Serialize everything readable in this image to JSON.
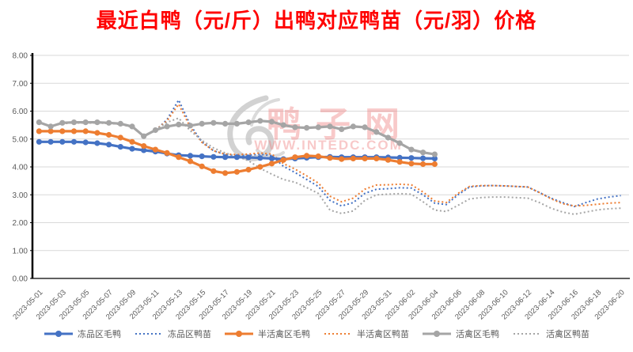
{
  "chart_data": {
    "type": "line",
    "title": "最近白鸭（元/斤）出鸭对应鸭苗（元/羽）价格",
    "title_color": "#FF0000",
    "xlabel": "",
    "ylabel": "",
    "ylim": [
      0,
      8
    ],
    "ytick_step": 1,
    "ytick_labels": [
      "0.00",
      "1.00",
      "2.00",
      "3.00",
      "4.00",
      "5.00",
      "6.00",
      "7.00",
      "8.00"
    ],
    "grid": true,
    "legend_position": "bottom",
    "x_label_every": 2,
    "dates": [
      "2023-05-01",
      "2023-05-02",
      "2023-05-03",
      "2023-05-04",
      "2023-05-05",
      "2023-05-06",
      "2023-05-07",
      "2023-05-08",
      "2023-05-09",
      "2023-05-10",
      "2023-05-11",
      "2023-05-12",
      "2023-05-13",
      "2023-05-14",
      "2023-05-15",
      "2023-05-16",
      "2023-05-17",
      "2023-05-18",
      "2023-05-19",
      "2023-05-20",
      "2023-05-21",
      "2023-05-22",
      "2023-05-23",
      "2023-05-24",
      "2023-05-25",
      "2023-05-26",
      "2023-05-27",
      "2023-05-28",
      "2023-05-29",
      "2023-05-30",
      "2023-05-31",
      "2023-06-01",
      "2023-06-02",
      "2023-06-03",
      "2023-06-04",
      "2023-06-05",
      "2023-06-06",
      "2023-06-07",
      "2023-06-08",
      "2023-06-09",
      "2023-06-10",
      "2023-06-11",
      "2023-06-12",
      "2023-06-13",
      "2023-06-14",
      "2023-06-15",
      "2023-06-16",
      "2023-06-17",
      "2023-06-18",
      "2023-06-19",
      "2023-06-20"
    ],
    "series": [
      {
        "name": "冻品区毛鸭",
        "key": "frozen-area-duck",
        "color": "#4472C4",
        "style": "solid",
        "marker": true,
        "values": [
          4.9,
          4.9,
          4.9,
          4.9,
          4.88,
          4.85,
          4.8,
          4.72,
          4.65,
          4.6,
          4.55,
          4.48,
          4.42,
          4.4,
          4.38,
          4.36,
          4.35,
          4.35,
          4.34,
          4.32,
          4.3,
          4.28,
          4.3,
          4.33,
          4.35,
          4.36,
          4.35,
          4.35,
          4.35,
          4.35,
          4.34,
          4.33,
          4.32,
          4.31,
          4.3,
          null,
          null,
          null,
          null,
          null,
          null,
          null,
          null,
          null,
          null,
          null,
          null,
          null,
          null,
          null,
          null
        ]
      },
      {
        "name": "冻品区鸭苗",
        "key": "frozen-area-duckling",
        "color": "#4472C4",
        "style": "dotted",
        "marker": false,
        "values": [
          5.58,
          5.45,
          5.56,
          5.58,
          5.58,
          5.58,
          5.56,
          5.53,
          5.43,
          5.1,
          5.3,
          5.7,
          6.4,
          5.5,
          4.9,
          4.58,
          4.44,
          4.4,
          4.42,
          4.45,
          4.4,
          4.02,
          3.8,
          3.55,
          3.3,
          2.8,
          2.6,
          2.72,
          3.05,
          3.2,
          3.22,
          3.25,
          3.24,
          3.0,
          2.7,
          2.65,
          3.0,
          3.28,
          3.32,
          3.33,
          3.32,
          3.3,
          3.28,
          3.08,
          2.88,
          2.72,
          2.58,
          2.72,
          2.85,
          2.92,
          2.97
        ]
      },
      {
        "name": "半活禽区毛鸭",
        "key": "semi-live-area-duck",
        "color": "#ED7D31",
        "style": "solid",
        "marker": true,
        "values": [
          5.28,
          5.28,
          5.28,
          5.28,
          5.28,
          5.22,
          5.15,
          5.05,
          4.9,
          4.75,
          4.62,
          4.5,
          4.35,
          4.2,
          4.02,
          3.85,
          3.78,
          3.82,
          3.9,
          4.0,
          4.12,
          4.25,
          4.35,
          4.4,
          4.38,
          4.32,
          4.28,
          4.3,
          4.3,
          4.3,
          4.25,
          4.18,
          4.12,
          4.1,
          4.1,
          null,
          null,
          null,
          null,
          null,
          null,
          null,
          null,
          null,
          null,
          null,
          null,
          null,
          null,
          null,
          null
        ]
      },
      {
        "name": "半活禽区鸭苗",
        "key": "semi-live-area-duckling",
        "color": "#ED7D31",
        "style": "dotted",
        "marker": false,
        "values": [
          5.58,
          5.45,
          5.56,
          5.58,
          5.58,
          5.58,
          5.56,
          5.53,
          5.43,
          5.1,
          5.32,
          5.65,
          6.25,
          5.42,
          4.88,
          4.58,
          4.46,
          4.44,
          4.46,
          4.5,
          4.46,
          4.12,
          3.92,
          3.68,
          3.42,
          2.95,
          2.75,
          2.88,
          3.2,
          3.35,
          3.36,
          3.38,
          3.36,
          3.1,
          2.78,
          2.72,
          3.05,
          3.3,
          3.33,
          3.33,
          3.32,
          3.3,
          3.28,
          3.08,
          2.86,
          2.68,
          2.6,
          2.62,
          2.66,
          2.7,
          2.72
        ]
      },
      {
        "name": "活禽区毛鸭",
        "key": "live-area-duck",
        "color": "#A5A5A5",
        "style": "solid",
        "marker": true,
        "values": [
          5.6,
          5.45,
          5.58,
          5.6,
          5.6,
          5.6,
          5.58,
          5.55,
          5.45,
          5.1,
          5.32,
          5.45,
          5.52,
          5.48,
          5.55,
          5.58,
          5.55,
          5.55,
          5.6,
          5.65,
          5.62,
          5.5,
          5.42,
          5.4,
          5.42,
          5.45,
          5.35,
          5.45,
          5.42,
          5.25,
          5.05,
          4.85,
          4.62,
          4.52,
          4.45,
          null,
          null,
          null,
          null,
          null,
          null,
          null,
          null,
          null,
          null,
          null,
          null,
          null,
          null,
          null,
          null
        ]
      },
      {
        "name": "活禽区鸭苗",
        "key": "live-area-duckling",
        "color": "#A5A5A5",
        "style": "dotted",
        "marker": false,
        "values": [
          5.58,
          5.45,
          5.56,
          5.58,
          5.58,
          5.58,
          5.56,
          5.53,
          5.43,
          5.1,
          5.32,
          5.6,
          5.75,
          5.3,
          4.95,
          4.68,
          4.5,
          4.38,
          4.22,
          3.95,
          3.74,
          3.55,
          3.45,
          3.26,
          3.05,
          2.45,
          2.33,
          2.42,
          2.8,
          3.0,
          3.02,
          3.04,
          3.02,
          2.75,
          2.45,
          2.4,
          2.62,
          2.85,
          2.9,
          2.92,
          2.92,
          2.9,
          2.88,
          2.72,
          2.52,
          2.38,
          2.3,
          2.38,
          2.46,
          2.5,
          2.52
        ]
      }
    ],
    "watermark": {
      "logo": "duck-swirl-logo",
      "text": "鸭子网",
      "subtext": "WWW.INTEDC.COM",
      "color": "#f08080"
    }
  }
}
